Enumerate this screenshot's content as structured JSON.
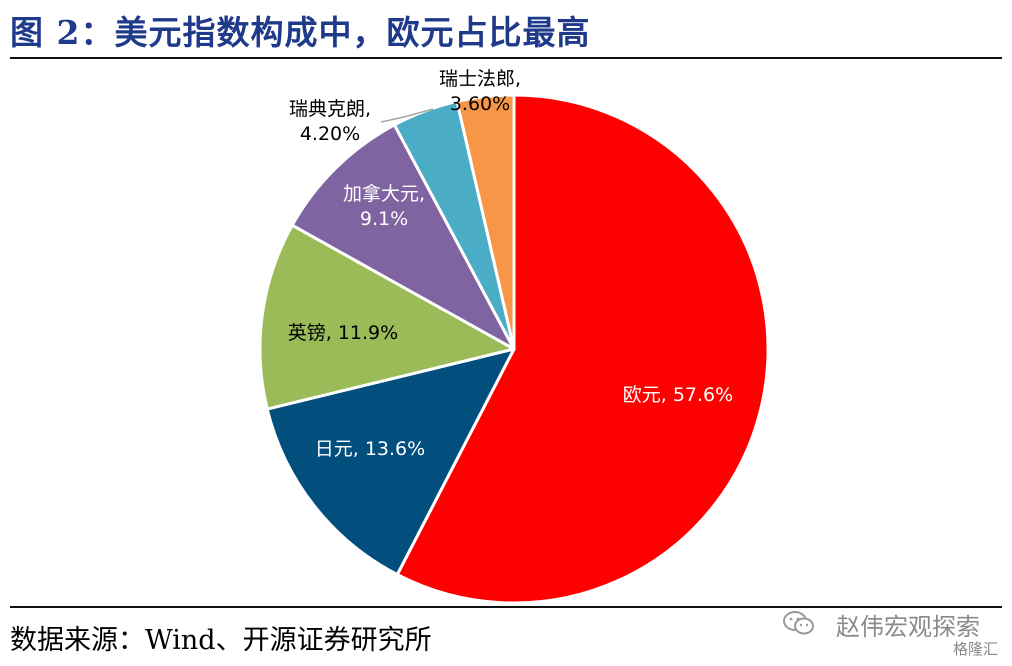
{
  "title": "图 2：美元指数构成中，欧元占比最高",
  "source": "数据来源：Wind、开源证券研究所",
  "watermark": {
    "account": "赵伟宏观探索",
    "site": "格隆汇"
  },
  "chart_data": {
    "type": "pie",
    "start_angle_deg": 90,
    "direction": "clockwise",
    "slices": [
      {
        "name": "欧元",
        "value": 57.6,
        "label": "欧元, 57.6%",
        "color": "#ff0000",
        "label_color": "#ffffff"
      },
      {
        "name": "日元",
        "value": 13.6,
        "label": "日元, 13.6%",
        "color": "#024f7e",
        "label_color": "#ffffff"
      },
      {
        "name": "英镑",
        "value": 11.9,
        "label": "英镑, 11.9%",
        "color": "#9bbb59",
        "label_color": "#000000"
      },
      {
        "name": "加拿大元",
        "value": 9.1,
        "label": "加拿大元,|9.1%",
        "color": "#8064a2",
        "label_color": "#ffffff"
      },
      {
        "name": "瑞典克朗",
        "value": 4.2,
        "label": "瑞典克朗,|4.20%",
        "color": "#4bacc6",
        "label_color": "#000000"
      },
      {
        "name": "瑞士法郎",
        "value": 3.6,
        "label": "瑞士法郎,|3.60%",
        "color": "#f79646",
        "label_color": "#000000"
      }
    ]
  }
}
